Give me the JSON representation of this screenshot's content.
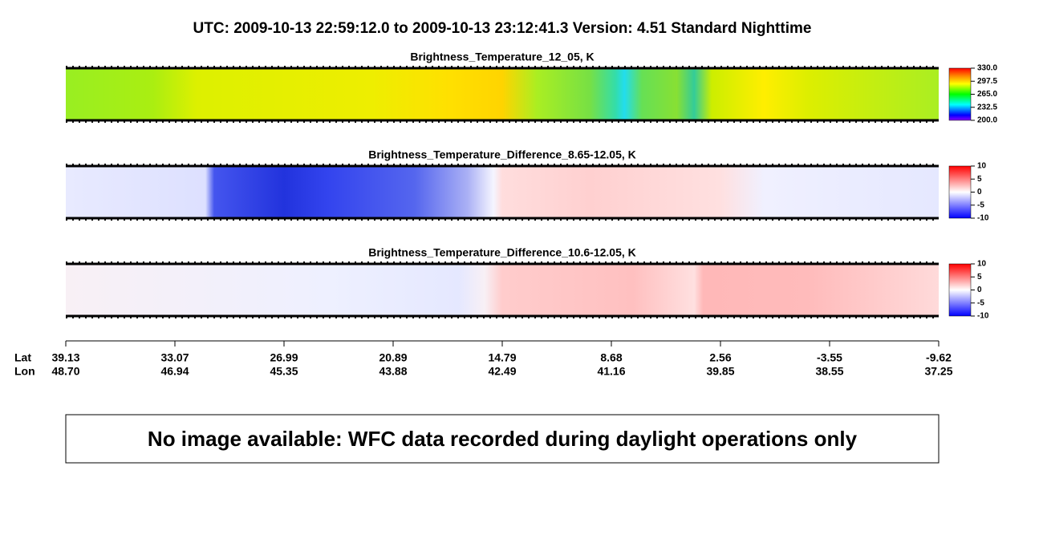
{
  "title": "UTC:  2009-10-13   22:59:12.0  to  2009-10-13   23:12:41.3    Version: 4.51  Standard Nighttime",
  "chart_data": [
    {
      "type": "heatmap",
      "title": "Brightness_Temperature_12_05, K",
      "colormap": "rainbow",
      "clim": [
        200,
        330
      ],
      "cticks": [
        {
          "value": 330,
          "label": "330.0"
        },
        {
          "value": 297.5,
          "label": "297.5"
        },
        {
          "value": 265,
          "label": "265.0"
        },
        {
          "value": 232.5,
          "label": "232.5"
        },
        {
          "value": 200,
          "label": "200.0"
        }
      ]
    },
    {
      "type": "heatmap",
      "title": "Brightness_Temperature_Difference_8.65-12.05, K",
      "colormap": "bwr",
      "clim": [
        -10,
        10
      ],
      "cticks": [
        10,
        5,
        0,
        -5,
        -10
      ]
    },
    {
      "type": "heatmap",
      "title": "Brightness_Temperature_Difference_10.6-12.05, K",
      "colormap": "bwr",
      "clim": [
        -10,
        10
      ],
      "cticks": [
        10,
        5,
        0,
        -5,
        -10
      ]
    }
  ],
  "x_axis": {
    "row_labels": [
      "Lat",
      "Lon"
    ],
    "lat": [
      "39.13",
      "33.07",
      "26.99",
      "20.89",
      "14.79",
      "8.68",
      "2.56",
      "-3.55",
      "-9.62"
    ],
    "lon": [
      "48.70",
      "46.94",
      "45.35",
      "43.88",
      "42.49",
      "41.16",
      "39.85",
      "38.55",
      "37.25"
    ]
  },
  "message": "No image available: WFC data recorded during daylight operations only"
}
